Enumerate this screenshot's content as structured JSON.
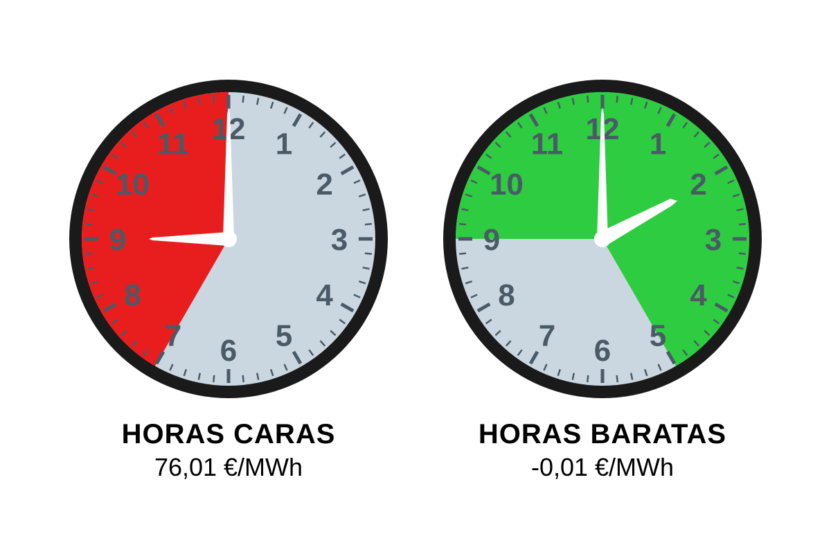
{
  "background_color": "#ffffff",
  "clock_style": {
    "bezel_color": "#1a1a1a",
    "bezel_width": 18,
    "face_base_color": "#cad7e0",
    "numeral_color": "#4a5a66",
    "tick_color": "#4a5a66",
    "hand_color": "#ffffff",
    "numeral_fontsize": 44,
    "radius": 220
  },
  "clocks": [
    {
      "id": "expensive",
      "sector_color": "#e81e1e",
      "sector_hours": {
        "start": 7,
        "end": 12
      },
      "hour_hand_at": 9,
      "minute_hand_at": 12,
      "title": "HORAS CARAS",
      "value": "76,01 €/MWh"
    },
    {
      "id": "cheap",
      "sector_color": "#2ecc40",
      "sector_hours": [
        {
          "start": 9,
          "end": 12
        },
        {
          "start": 12,
          "end": 5
        }
      ],
      "hour_hand_at": 2,
      "minute_hand_at": 12,
      "title": "HORAS BARATAS",
      "value": "-0,01 €/MWh"
    }
  ]
}
